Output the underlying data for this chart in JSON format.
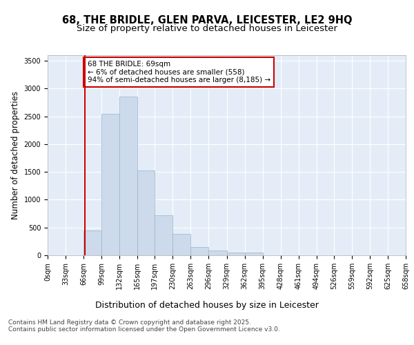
{
  "title_line1": "68, THE BRIDLE, GLEN PARVA, LEICESTER, LE2 9HQ",
  "title_line2": "Size of property relative to detached houses in Leicester",
  "xlabel": "Distribution of detached houses by size in Leicester",
  "ylabel": "Number of detached properties",
  "bar_color": "#ccdaeb",
  "bar_edge_color": "#9ab5cc",
  "background_color": "#e4edf7",
  "grid_color": "#ffffff",
  "vline_color": "#cc0000",
  "vline_x": 69,
  "annotation_title": "68 THE BRIDLE: 69sqm",
  "annotation_line2": "← 6% of detached houses are smaller (558)",
  "annotation_line3": "94% of semi-detached houses are larger (8,185) →",
  "annotation_box_color": "#cc0000",
  "footer_line1": "Contains HM Land Registry data © Crown copyright and database right 2025.",
  "footer_line2": "Contains public sector information licensed under the Open Government Licence v3.0.",
  "bin_edges": [
    0,
    33,
    66,
    99,
    132,
    165,
    197,
    230,
    263,
    296,
    329,
    362,
    395,
    428,
    461,
    494,
    526,
    559,
    592,
    625,
    658
  ],
  "bin_labels": [
    "0sqm",
    "33sqm",
    "66sqm",
    "99sqm",
    "132sqm",
    "165sqm",
    "197sqm",
    "230sqm",
    "263sqm",
    "296sqm",
    "329sqm",
    "362sqm",
    "395sqm",
    "428sqm",
    "461sqm",
    "494sqm",
    "526sqm",
    "559sqm",
    "592sqm",
    "625sqm",
    "658sqm"
  ],
  "bar_heights": [
    5,
    5,
    450,
    2540,
    2850,
    1530,
    720,
    390,
    150,
    90,
    55,
    55,
    5,
    5,
    3,
    2,
    2,
    2,
    2,
    2
  ],
  "ylim": [
    0,
    3600
  ],
  "yticks": [
    0,
    500,
    1000,
    1500,
    2000,
    2500,
    3000,
    3500
  ],
  "title_fontsize": 10.5,
  "subtitle_fontsize": 9.5,
  "tick_fontsize": 7,
  "ylabel_fontsize": 8.5,
  "xlabel_fontsize": 9,
  "footer_fontsize": 6.5,
  "annotation_fontsize": 7.5
}
